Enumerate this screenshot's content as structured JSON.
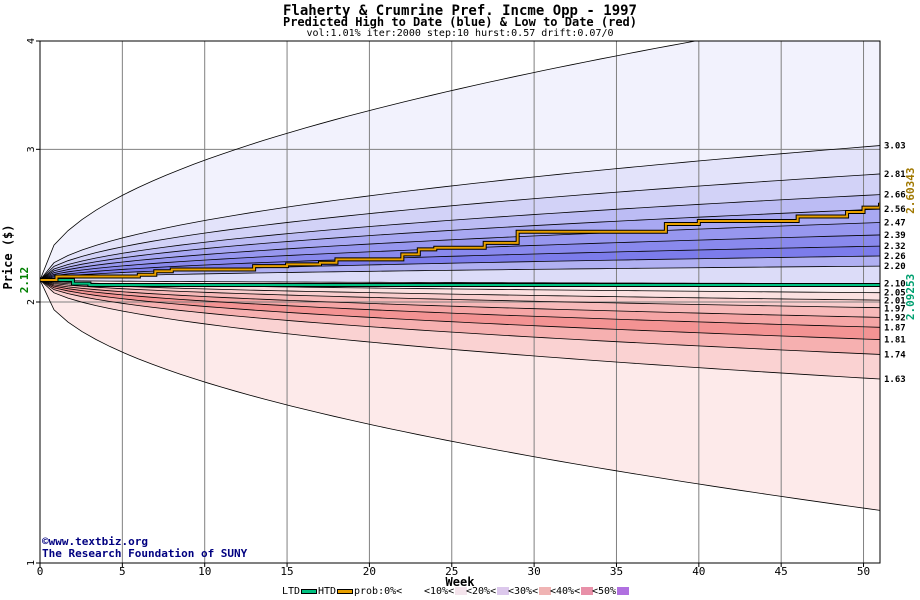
{
  "chart_data": {
    "type": "area",
    "title": "Flaherty & Crumrine Pref. Incme Opp - 1997",
    "subtitle": "Predicted High to Date (blue) &  Low to Date (red)",
    "params": "vol:1.01% iter:2000 step:10 hurst:0.57 drift:0.07/0",
    "xlabel": "Week",
    "ylabel": "Price ($)",
    "xlim": [
      0,
      51
    ],
    "ylim": [
      1,
      4
    ],
    "y_scale": "log",
    "grid": true,
    "x_ticks": [
      "0",
      "5",
      "10",
      "15",
      "20",
      "25",
      "30",
      "35",
      "40",
      "45",
      "50"
    ],
    "y_ticks": [
      "1",
      "2",
      "3",
      "4"
    ],
    "start_label": "2.12",
    "htd_label": "2.60343",
    "ltd_label": "2.09253",
    "colors": {
      "htd": "#e8a000",
      "ltd": "#00c080",
      "blue": "#6f6fee",
      "red": "#f07070"
    },
    "upper_bands": [
      {
        "label": "3.03",
        "final": 3.03
      },
      {
        "label": "2.81",
        "final": 2.81
      },
      {
        "label": "2.66",
        "final": 2.66
      },
      {
        "label": "2.56",
        "final": 2.56
      },
      {
        "label": "2.47",
        "final": 2.47
      },
      {
        "label": "2.39",
        "final": 2.39
      },
      {
        "label": "2.32",
        "final": 2.32
      },
      {
        "label": "2.26",
        "final": 2.26
      },
      {
        "label": "2.20",
        "final": 2.2
      },
      {
        "label": "2.10",
        "final": 2.1
      }
    ],
    "lower_bands": [
      {
        "label": "2.05",
        "final": 2.05
      },
      {
        "label": "2.01",
        "final": 2.01
      },
      {
        "label": "1.97",
        "final": 1.97
      },
      {
        "label": "1.92",
        "final": 1.92
      },
      {
        "label": "1.87",
        "final": 1.87
      },
      {
        "label": "1.81",
        "final": 1.81
      },
      {
        "label": "1.74",
        "final": 1.74
      },
      {
        "label": "1.63",
        "final": 1.63
      }
    ],
    "outer_max": 4.35,
    "outer_min": 1.15,
    "htd_series": {
      "x": [
        0,
        1,
        3,
        6,
        7,
        8,
        13,
        15,
        17,
        18,
        22,
        23,
        24,
        27,
        29,
        36,
        38,
        40,
        46,
        49,
        50,
        51
      ],
      "y": [
        2.12,
        2.14,
        2.14,
        2.15,
        2.17,
        2.18,
        2.2,
        2.21,
        2.22,
        2.24,
        2.27,
        2.3,
        2.31,
        2.34,
        2.41,
        2.41,
        2.46,
        2.48,
        2.51,
        2.54,
        2.57,
        2.60343
      ]
    },
    "ltd_series": {
      "x": [
        0,
        2,
        3,
        51
      ],
      "y": [
        2.12,
        2.1,
        2.0925,
        2.09253
      ]
    },
    "legend": [
      {
        "label": "LTD",
        "kind": "line",
        "color": "#00c080"
      },
      {
        "label": "HTD",
        "kind": "line",
        "color": "#e8a000"
      },
      {
        "label": "prob:0%<",
        "kind": "swatch",
        "color": "#ffffff"
      },
      {
        "label": "<10%<",
        "kind": "swatch",
        "color": "#f4e4ec"
      },
      {
        "label": "<20%<",
        "kind": "swatch",
        "color": "#dcc8ec"
      },
      {
        "label": "<30%<",
        "kind": "swatch",
        "color": "#f0b4b4"
      },
      {
        "label": "<40%<",
        "kind": "swatch",
        "color": "#e890a8"
      },
      {
        "label": "<50%",
        "kind": "swatch",
        "color": "#b070e0"
      }
    ],
    "watermark_line1": "©www.textbiz.org",
    "watermark_line2": "The Research Foundation of SUNY"
  }
}
